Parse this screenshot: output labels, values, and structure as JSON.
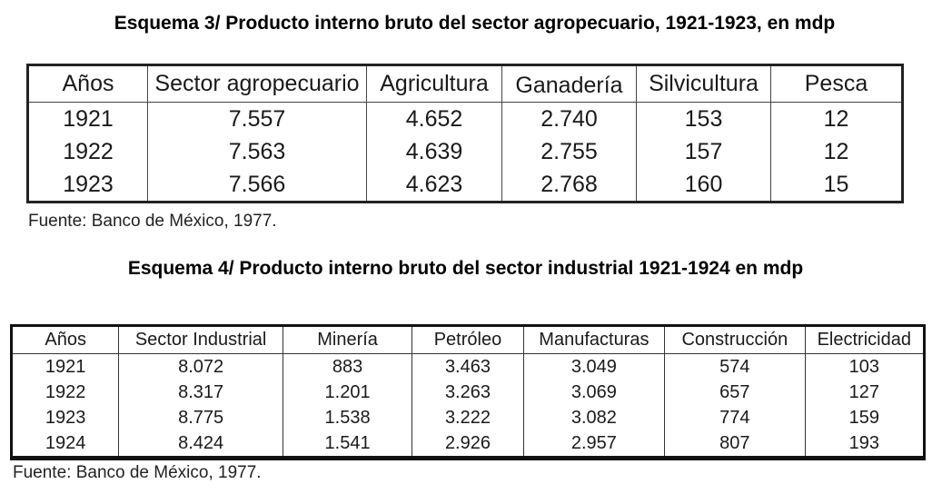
{
  "scheme3": {
    "title": "Esquema 3/ Producto interno bruto del sector agropecuario, 1921-1923, en mdp",
    "headers": [
      "Años",
      "Sector agropecuario",
      "Agricultura",
      "Ganadería",
      "Silvicultura",
      "Pesca"
    ],
    "rows": [
      [
        "1921",
        "7.557",
        "4.652",
        "2.740",
        "153",
        "12"
      ],
      [
        "1922",
        "7.563",
        "4.639",
        "2.755",
        "157",
        "12"
      ],
      [
        "1923",
        "7.566",
        "4.623",
        "2.768",
        "160",
        "15"
      ]
    ],
    "source": "Fuente: Banco de México, 1977."
  },
  "scheme4": {
    "title": "Esquema 4/ Producto interno bruto del sector industrial 1921-1924 en mdp",
    "headers": [
      "Años",
      "Sector Industrial",
      "Minería",
      "Petróleo",
      "Manufacturas",
      "Construcción",
      "Electricidad"
    ],
    "rows": [
      [
        "1921",
        "8.072",
        "883",
        "3.463",
        "3.049",
        "574",
        "103"
      ],
      [
        "1922",
        "8.317",
        "1.201",
        "3.263",
        "3.069",
        "657",
        "127"
      ],
      [
        "1923",
        "8.775",
        "1.538",
        "3.222",
        "3.082",
        "774",
        "159"
      ],
      [
        "1924",
        "8.424",
        "1.541",
        "2.926",
        "2.957",
        "807",
        "193"
      ]
    ],
    "source": "Fuente: Banco de México, 1977."
  }
}
